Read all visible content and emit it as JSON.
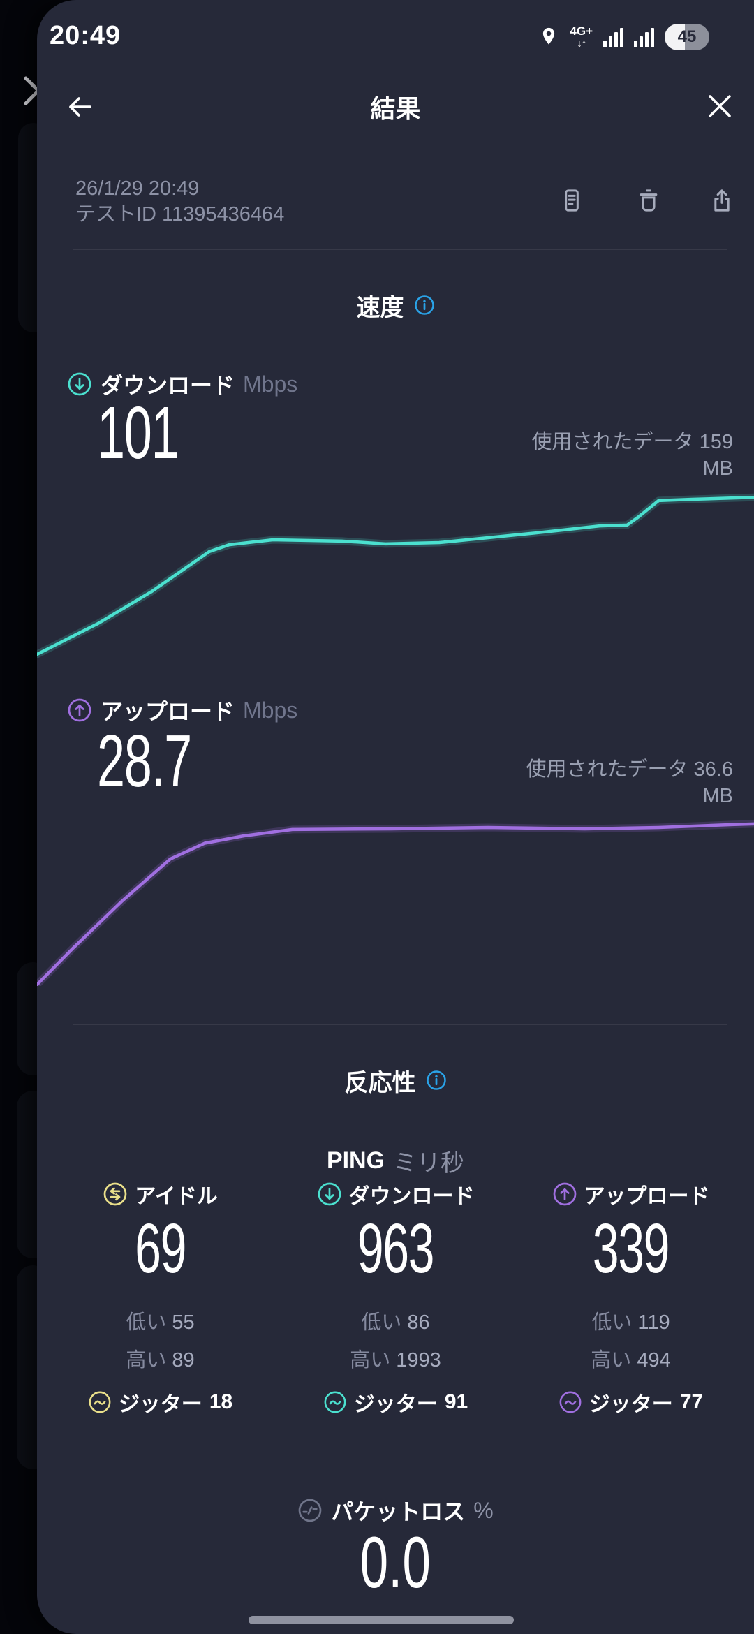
{
  "status_bar": {
    "time": "20:49",
    "network": "4G+",
    "network_arrows": "↓↑",
    "battery_percent": "45"
  },
  "header": {
    "title": "結果"
  },
  "test_info": {
    "datetime": "26/1/29 20:49",
    "test_id": "テストID 11395436464"
  },
  "speed": {
    "heading": "速度",
    "download": {
      "label": "ダウンロード",
      "unit": "Mbps",
      "value": "101",
      "data_used": "使用されたデータ 159",
      "data_used_unit": "MB"
    },
    "upload": {
      "label": "アップロード",
      "unit": "Mbps",
      "value": "28.7",
      "data_used": "使用されたデータ 36.6",
      "data_used_unit": "MB"
    }
  },
  "responsiveness": {
    "heading": "反応性",
    "ping_label": "PING",
    "ping_unit": "ミリ秒",
    "columns": [
      {
        "label": "アイドル",
        "value": "69",
        "low_label": "低い",
        "low": "55",
        "high_label": "高い",
        "high": "89",
        "jitter_label": "ジッター",
        "jitter": "18"
      },
      {
        "label": "ダウンロード",
        "value": "963",
        "low_label": "低い",
        "low": "86",
        "high_label": "高い",
        "high": "1993",
        "jitter_label": "ジッター",
        "jitter": "91"
      },
      {
        "label": "アップロード",
        "value": "339",
        "low_label": "低い",
        "low": "119",
        "high_label": "高い",
        "high": "494",
        "jitter_label": "ジッター",
        "jitter": "77"
      }
    ],
    "packet_loss": {
      "label": "パケットロス",
      "unit": "%",
      "value": "0.0"
    }
  },
  "colors": {
    "panel_bg": "#262939",
    "download_teal": "#4be0cf",
    "upload_purple": "#a06fe0",
    "info_blue": "#2aa3e8",
    "idle_yellow": "#e9df8a",
    "gray_text": "#8d92a6"
  },
  "chart_data": [
    {
      "type": "line",
      "name": "download-speed-over-time",
      "unit": "Mbps",
      "final_value": 101,
      "data_used_mb": 159,
      "color": "#4be0cf",
      "points_pct": [
        [
          0,
          95.8
        ],
        [
          8.5,
          81.6
        ],
        [
          16,
          66.8
        ],
        [
          24,
          48.4
        ],
        [
          26.8,
          45.2
        ],
        [
          32.9,
          42.9
        ],
        [
          42.5,
          43.5
        ],
        [
          48.6,
          44.8
        ],
        [
          56.1,
          44.2
        ],
        [
          69.7,
          39.7
        ],
        [
          78.5,
          36.5
        ],
        [
          82.3,
          36.1
        ],
        [
          83.9,
          32.3
        ],
        [
          86.7,
          24.8
        ],
        [
          91.4,
          24.2
        ],
        [
          97.9,
          23.5
        ],
        [
          100,
          23.3
        ]
      ]
    },
    {
      "type": "line",
      "name": "upload-speed-over-time",
      "unit": "Mbps",
      "final_value": 28.7,
      "data_used_mb": 36.6,
      "color": "#a06fe0",
      "points_pct": [
        [
          0,
          99.2
        ],
        [
          5.1,
          77.3
        ],
        [
          11.9,
          49.6
        ],
        [
          18.6,
          24.8
        ],
        [
          23.4,
          15.5
        ],
        [
          28.8,
          11.2
        ],
        [
          35.6,
          7.4
        ],
        [
          49.3,
          7.0
        ],
        [
          62.9,
          6.2
        ],
        [
          76.4,
          7.0
        ],
        [
          86.7,
          6.2
        ],
        [
          96.9,
          4.5
        ],
        [
          100,
          4.1
        ]
      ]
    }
  ]
}
